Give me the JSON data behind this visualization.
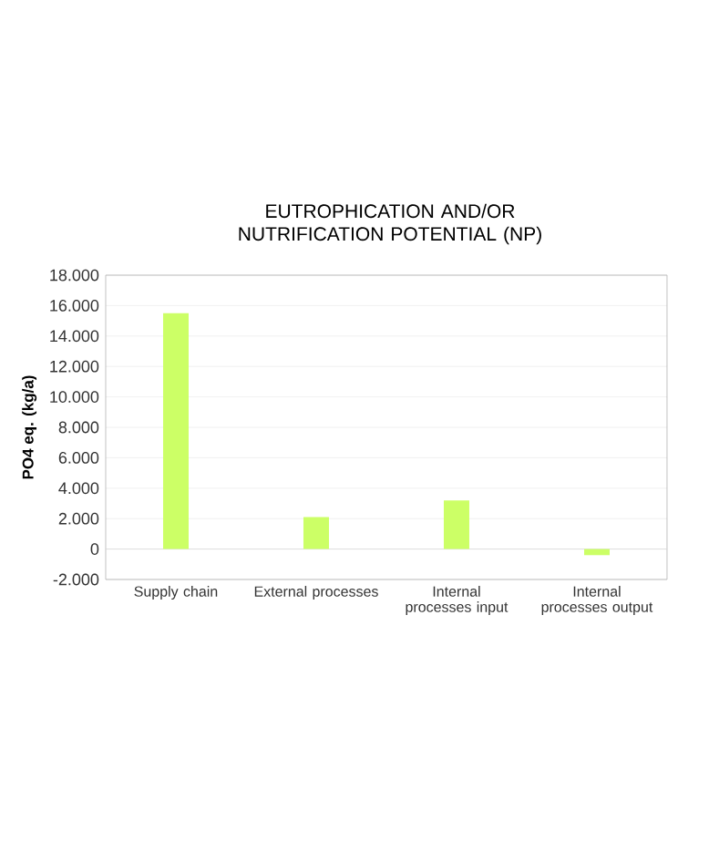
{
  "chart_data": {
    "type": "bar",
    "title": "EUTROPHICATION AND/OR NUTRIFICATION POTENTIAL (NP)",
    "ylabel": "PO4 eq. (kg/a)",
    "categories": [
      "Supply chain",
      "External processes",
      "Internal processes input",
      "Internal processes output"
    ],
    "values": [
      15500,
      2100,
      3200,
      -400
    ],
    "color": "#ccff66",
    "ylim": [
      -2000,
      18000
    ],
    "yticks": [
      {
        "value": -2000,
        "label": "-2.000"
      },
      {
        "value": 0,
        "label": "0"
      },
      {
        "value": 2000,
        "label": "2.000"
      },
      {
        "value": 4000,
        "label": "4.000"
      },
      {
        "value": 6000,
        "label": "6.000"
      },
      {
        "value": 8000,
        "label": "8.000"
      },
      {
        "value": 10000,
        "label": "10.000"
      },
      {
        "value": 12000,
        "label": "12.000"
      },
      {
        "value": 14000,
        "label": "14.000"
      },
      {
        "value": 16000,
        "label": "16.000"
      },
      {
        "value": 18000,
        "label": "18.000"
      }
    ],
    "grid": "y"
  }
}
